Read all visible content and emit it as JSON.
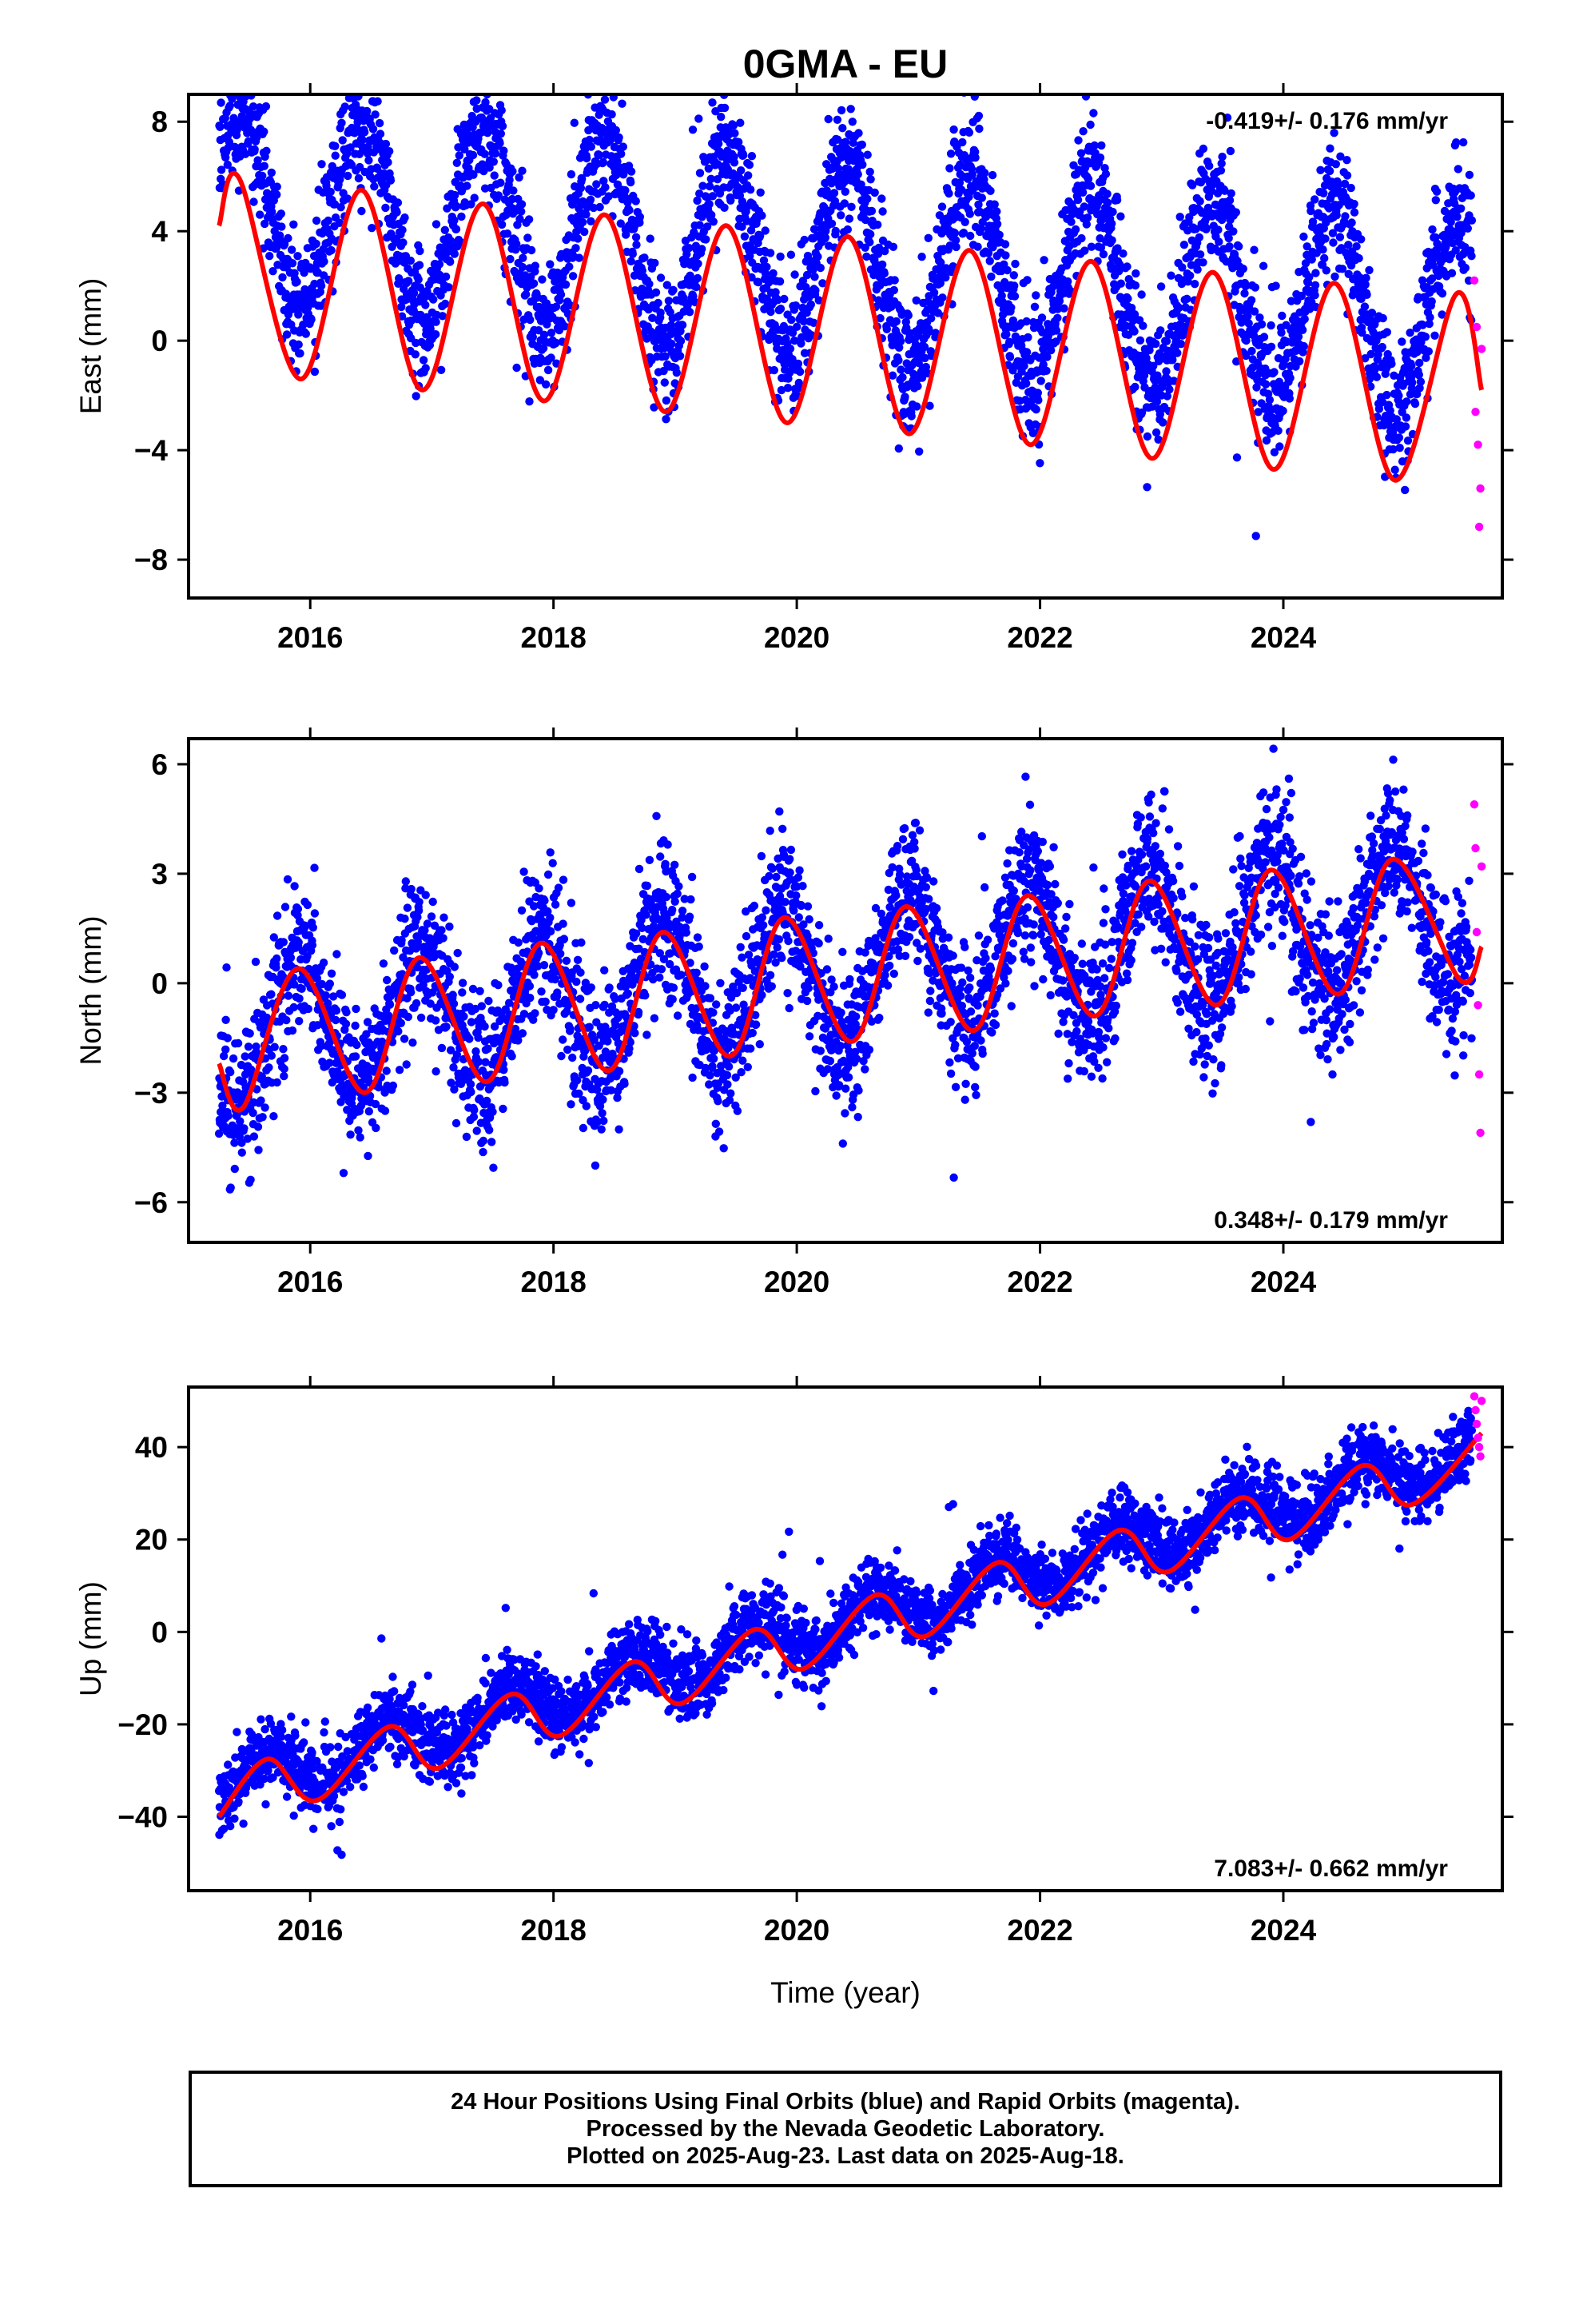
{
  "title": "0GMA - EU",
  "colors": {
    "final": "#0000ff",
    "rapid": "#ff00ff",
    "model": "#ff0000",
    "axis": "#000000"
  },
  "footer": {
    "line1": "24 Hour Positions Using Final Orbits (blue) and Rapid Orbits (magenta).",
    "line2": "Processed by the Nevada Geodetic Laboratory.",
    "line3": "Plotted on 2025-Aug-23. Last data on 2025-Aug-18."
  },
  "chart_data": [
    {
      "type": "scatter",
      "ylabel": "East (mm)",
      "xlabel": "",
      "xlim": [
        2015.0,
        2025.8
      ],
      "ylim": [
        -9.4,
        9.0
      ],
      "xticks": [
        2016,
        2018,
        2020,
        2022,
        2024
      ],
      "yticks": [
        -8,
        -4,
        0,
        4,
        8
      ],
      "ytick_labels": [
        "−8",
        "−4",
        "0",
        "4",
        "8"
      ],
      "rate_label": "-0.419+/- 0.176 mm/yr",
      "rate_position": "top-right",
      "start": 2015.25,
      "end_final": 2025.55,
      "end": 2025.63,
      "model": {
        "offset": 5.1,
        "rate": -0.419,
        "amplitude": 3.6,
        "peak_phase": 0.42,
        "noise_sd": 1.2
      },
      "model_curve": {
        "x": [
          2015.25,
          2015.42,
          2015.92,
          2016.42,
          2016.92,
          2017.42,
          2017.92,
          2018.42,
          2018.92,
          2019.42,
          2019.92,
          2020.42,
          2020.92,
          2021.42,
          2021.92,
          2022.42,
          2022.92,
          2023.42,
          2023.92,
          2024.42,
          2024.92,
          2025.42,
          2025.63
        ],
        "y": [
          4.2,
          5.9,
          -1.4,
          5.5,
          -1.8,
          5.0,
          -2.2,
          4.6,
          -2.6,
          4.2,
          -3.0,
          3.8,
          -3.4,
          3.3,
          -3.8,
          2.9,
          -4.3,
          2.5,
          -4.7,
          2.1,
          -5.1,
          1.7,
          -1.8
        ]
      },
      "series": [
        {
          "name": "Final Orbits",
          "color": "#0000ff",
          "count": 3650
        },
        {
          "name": "Rapid Orbits",
          "color": "#ff00ff",
          "x": [
            2025.57,
            2025.58,
            2025.59,
            2025.6,
            2025.61,
            2025.62,
            2025.63
          ],
          "y": [
            2.2,
            -2.6,
            0.5,
            -3.8,
            -6.8,
            -5.4,
            -0.3
          ]
        }
      ]
    },
    {
      "type": "scatter",
      "ylabel": "North (mm)",
      "xlabel": "",
      "xlim": [
        2015.0,
        2025.8
      ],
      "ylim": [
        -7.1,
        6.7
      ],
      "xticks": [
        2016,
        2018,
        2020,
        2022,
        2024
      ],
      "yticks": [
        -6,
        -3,
        0,
        3,
        6
      ],
      "ytick_labels": [
        "−6",
        "−3",
        "0",
        "3",
        "6"
      ],
      "rate_label": "0.348+/- 0.179 mm/yr",
      "rate_position": "bottom-right",
      "start": 2015.25,
      "end_final": 2025.55,
      "end": 2025.63,
      "model": {
        "offset": -1.5,
        "rate": 0.348,
        "amplitude": 1.9,
        "peak_phase": 0.9,
        "noise_sd": 1.0
      },
      "model_curve": {
        "x": [
          2015.25,
          2015.45,
          2015.9,
          2016.45,
          2016.9,
          2017.45,
          2017.9,
          2018.45,
          2018.9,
          2019.45,
          2019.9,
          2020.45,
          2020.9,
          2021.45,
          2021.9,
          2022.45,
          2022.9,
          2023.45,
          2023.9,
          2024.45,
          2024.9,
          2025.45,
          2025.63
        ],
        "y": [
          -2.2,
          -3.4,
          0.4,
          -3.0,
          0.7,
          -2.7,
          1.1,
          -2.4,
          1.4,
          -2.0,
          1.8,
          -1.6,
          2.1,
          -1.3,
          2.4,
          -0.9,
          2.8,
          -0.6,
          3.1,
          -0.3,
          3.4,
          0.1,
          1.0
        ]
      },
      "series": [
        {
          "name": "Final Orbits",
          "color": "#0000ff",
          "count": 3650
        },
        {
          "name": "Rapid Orbits",
          "color": "#ff00ff",
          "x": [
            2025.57,
            2025.58,
            2025.59,
            2025.6,
            2025.61,
            2025.62,
            2025.63
          ],
          "y": [
            4.9,
            3.7,
            1.4,
            -0.6,
            -2.5,
            -4.1,
            3.2
          ]
        }
      ]
    },
    {
      "type": "scatter",
      "ylabel": "Up (mm)",
      "xlabel": "Time (year)",
      "xlim": [
        2015.0,
        2025.8
      ],
      "ylim": [
        -56,
        53
      ],
      "xticks": [
        2016,
        2018,
        2020,
        2022,
        2024
      ],
      "yticks": [
        -40,
        -20,
        0,
        20,
        40
      ],
      "ytick_labels": [
        "−40",
        "−20",
        "0",
        "20",
        "40"
      ],
      "rate_label": "7.083+/- 0.662 mm/yr",
      "rate_position": "bottom-right",
      "start": 2015.25,
      "end_final": 2025.55,
      "end": 2025.63,
      "model": {
        "offset": -34.0,
        "rate": 7.083,
        "amplitude": 5.0,
        "peak_phase": 0.65,
        "noise_sd": 3.8
      },
      "model_curve": {
        "x": [
          2015.25,
          2015.65,
          2016.05,
          2016.65,
          2017.05,
          2017.65,
          2018.05,
          2018.65,
          2019.05,
          2019.65,
          2020.05,
          2020.65,
          2021.05,
          2021.65,
          2022.05,
          2022.65,
          2023.05,
          2023.65,
          2024.05,
          2024.65,
          2025.05,
          2025.63
        ],
        "y": [
          -40,
          -27.5,
          -36.5,
          -20.5,
          -29.5,
          -13.5,
          -22.5,
          -6.5,
          -15.5,
          0.5,
          -8.0,
          8.0,
          -1.0,
          15.0,
          6.0,
          22.0,
          13.0,
          29.0,
          20.0,
          36.0,
          27.5,
          43.0
        ]
      },
      "series": [
        {
          "name": "Final Orbits",
          "color": "#0000ff",
          "count": 3650
        },
        {
          "name": "Rapid Orbits",
          "color": "#ff00ff",
          "x": [
            2025.57,
            2025.58,
            2025.59,
            2025.6,
            2025.61,
            2025.62,
            2025.63
          ],
          "y": [
            51,
            48,
            45,
            42,
            40,
            38,
            50
          ]
        }
      ]
    }
  ]
}
